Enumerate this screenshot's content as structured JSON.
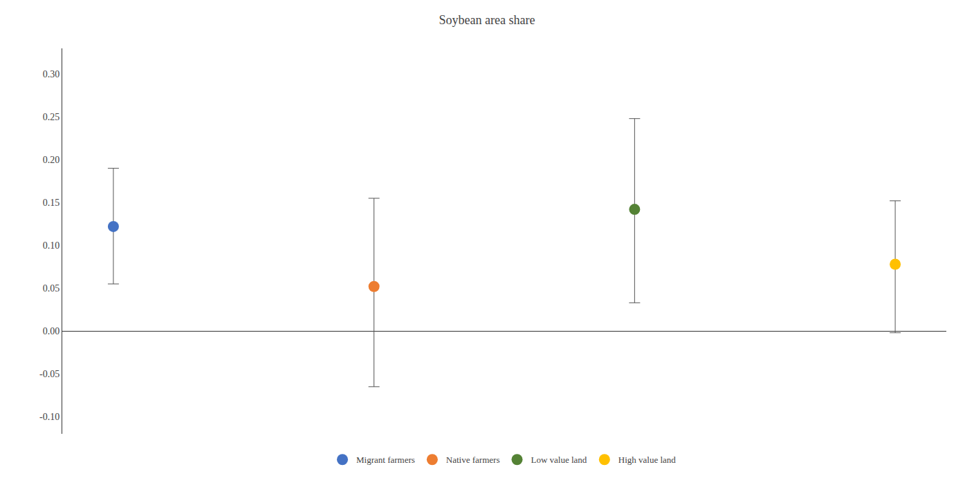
{
  "chart_data": {
    "type": "scatter",
    "title": "Soybean area share",
    "categories": [
      "Migrant farmers",
      "Native farmers",
      "Low value land",
      "High value land"
    ],
    "values": [
      0.122,
      0.052,
      0.142,
      0.078
    ],
    "error_upper": [
      0.068,
      0.103,
      0.106,
      0.074
    ],
    "error_lower": [
      0.067,
      0.117,
      0.109,
      0.08
    ],
    "colors": [
      "#4472C4",
      "#ED7D31",
      "#548235",
      "#FFC000"
    ],
    "marker": "circle",
    "ylim": [
      -0.12,
      0.33
    ],
    "yticks": [
      {
        "value": -0.1,
        "label": "-0.10"
      },
      {
        "value": -0.05,
        "label": "-0.05"
      },
      {
        "value": 0.0,
        "label": "0.00"
      },
      {
        "value": 0.05,
        "label": "0.05"
      },
      {
        "value": 0.1,
        "label": "0.10"
      },
      {
        "value": 0.15,
        "label": "0.15"
      },
      {
        "value": 0.2,
        "label": "0.20"
      },
      {
        "value": 0.25,
        "label": "0.25"
      },
      {
        "value": 0.3,
        "label": "0.30"
      }
    ],
    "tick_labels": "y",
    "grid": false,
    "legend": "bottom"
  }
}
